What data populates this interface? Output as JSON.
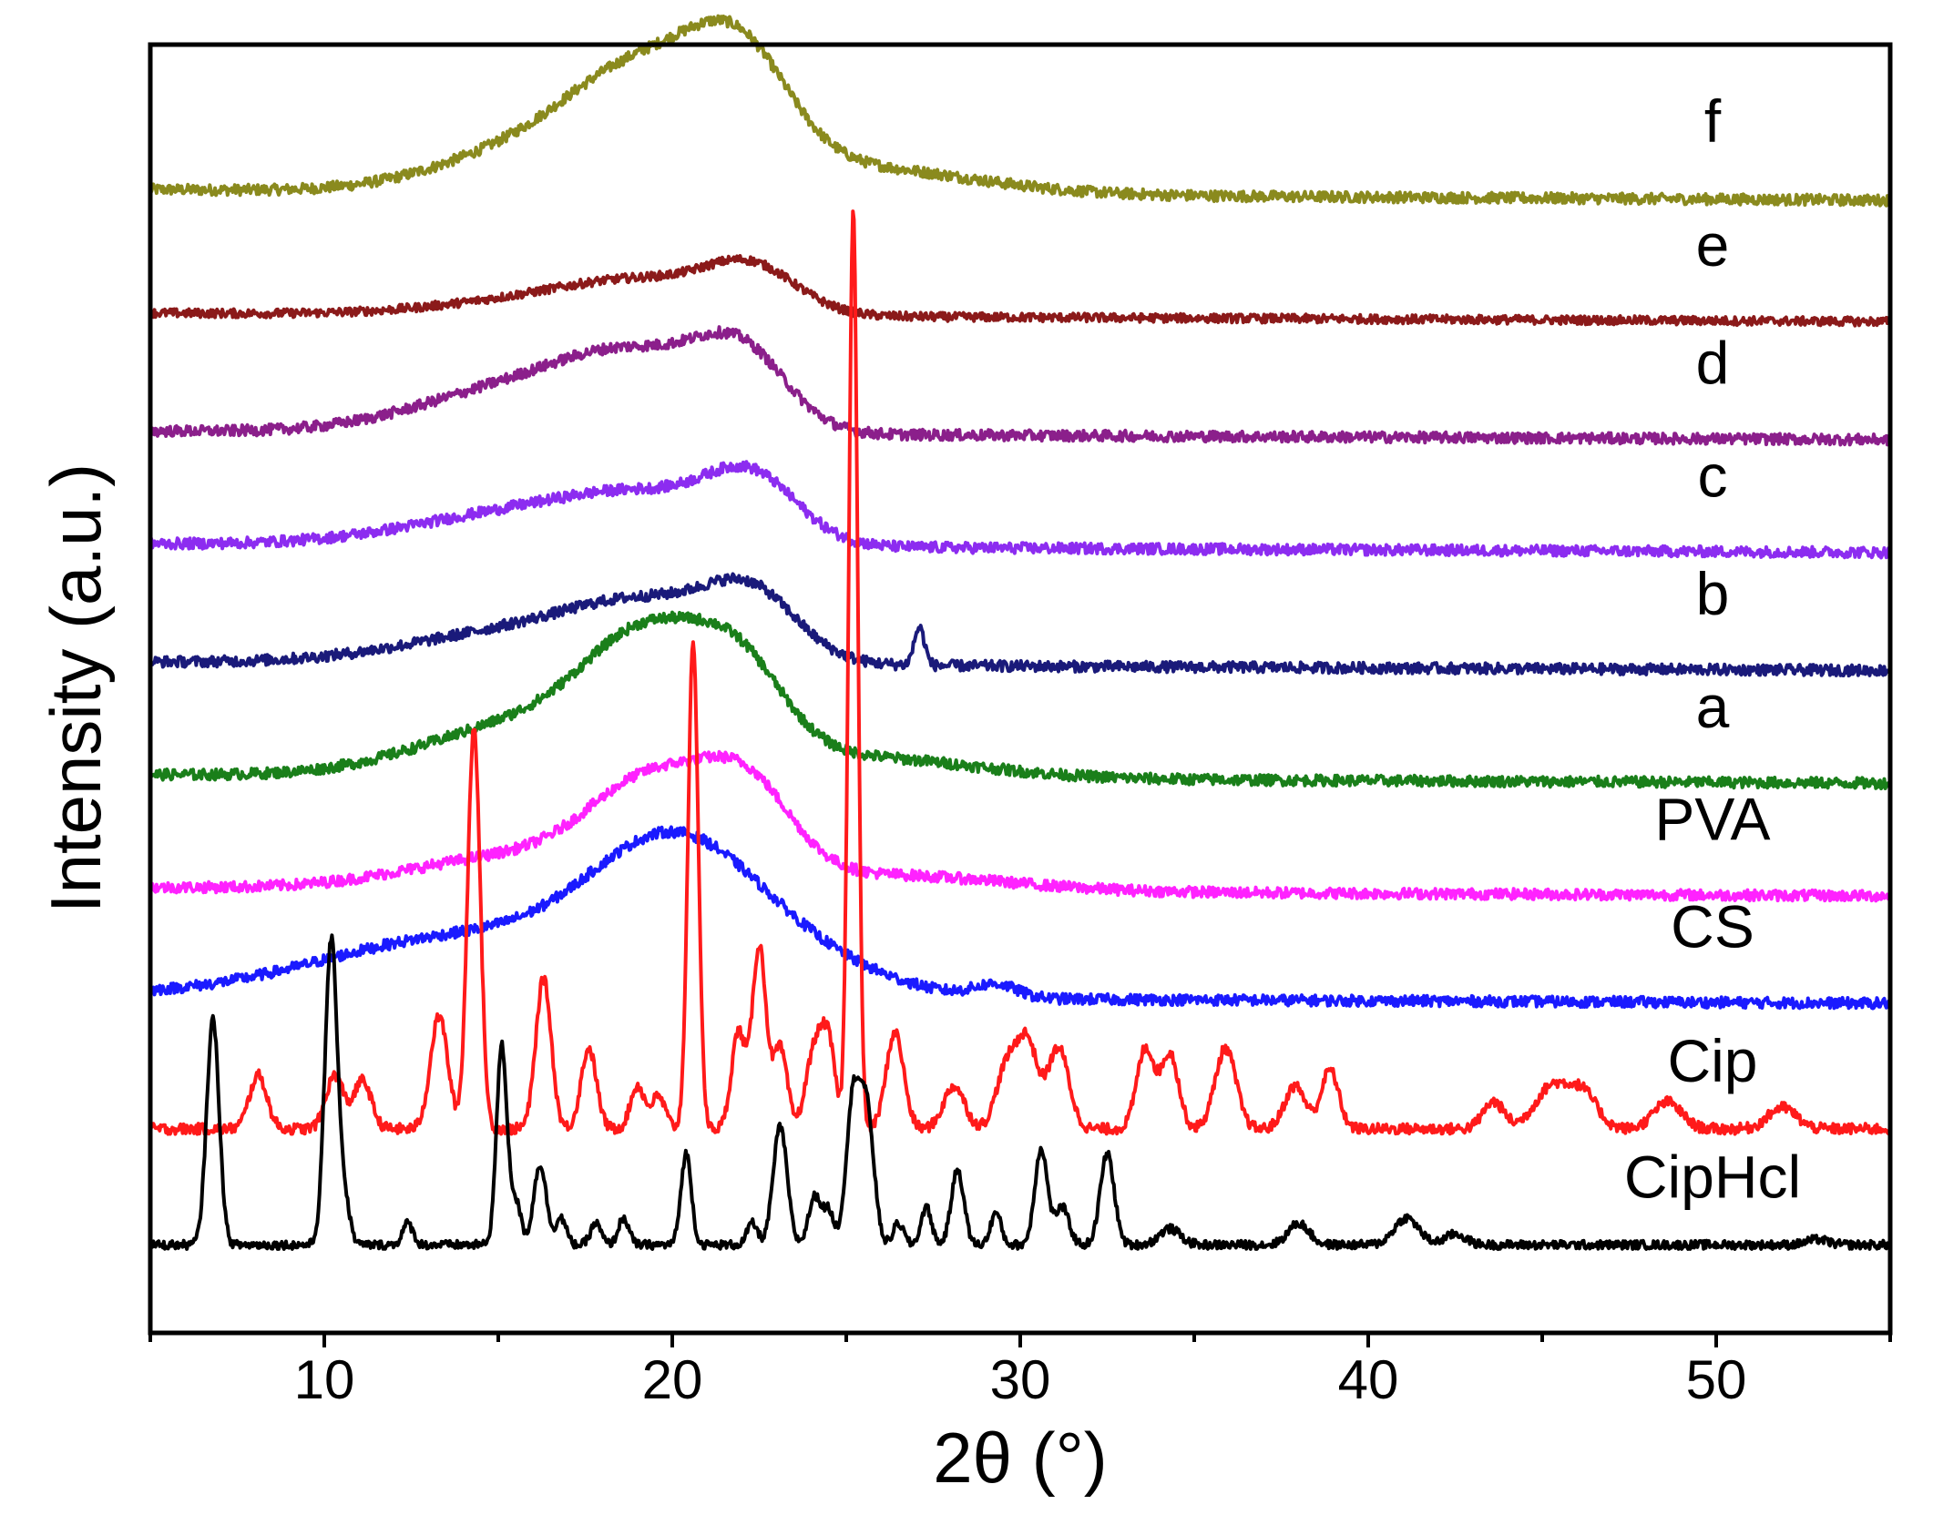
{
  "chart_data": {
    "type": "line",
    "title": "",
    "xlabel": "2θ (°)",
    "ylabel": "Intensity (a.u.)",
    "xlim": [
      5,
      55
    ],
    "ylim": [
      0,
      12
    ],
    "xticks": [
      10,
      20,
      30,
      40,
      50
    ],
    "xtick_labels": [
      "10",
      "20",
      "30",
      "40",
      "50"
    ],
    "yticks_shown": false,
    "legend": "inline labels at right end of each trace",
    "series": [
      {
        "name": "f",
        "label": "f",
        "color": "#8a8a1e",
        "offset": 10.65,
        "peaks": [
          [
            15.5,
            0.32,
            2.5
          ],
          [
            19.3,
            1.05,
            2.2
          ],
          [
            22.0,
            0.85,
            1.4
          ],
          [
            25.0,
            0.25,
            3.5
          ]
        ],
        "baseline_tilt": -0.1,
        "noise": 0.05,
        "points": [
          [
            5,
            10.65
          ],
          [
            12,
            10.72
          ],
          [
            16,
            11.0
          ],
          [
            19.3,
            11.72
          ],
          [
            22,
            11.55
          ],
          [
            25,
            11.05
          ],
          [
            30,
            10.8
          ],
          [
            40,
            10.66
          ],
          [
            55,
            10.55
          ]
        ]
      },
      {
        "name": "e",
        "label": "e",
        "color": "#8b1a1a",
        "offset": 9.5,
        "peaks": [
          [
            17.0,
            0.18,
            3.0
          ],
          [
            19.5,
            0.2,
            2.0
          ],
          [
            22.3,
            0.4,
            1.3
          ]
        ],
        "baseline_tilt": -0.08,
        "noise": 0.04,
        "points": [
          [
            5,
            9.5
          ],
          [
            15,
            9.6
          ],
          [
            19.5,
            9.78
          ],
          [
            22.3,
            9.95
          ],
          [
            25,
            9.6
          ],
          [
            35,
            9.48
          ],
          [
            55,
            9.42
          ]
        ]
      },
      {
        "name": "d",
        "label": "d",
        "color": "#8b1f8b",
        "offset": 8.4,
        "peaks": [
          [
            16.0,
            0.45,
            3.0
          ],
          [
            19.2,
            0.5,
            2.0
          ],
          [
            22.0,
            0.65,
            1.3
          ]
        ],
        "baseline_tilt": -0.08,
        "noise": 0.05,
        "points": [
          [
            5,
            8.4
          ],
          [
            12,
            8.55
          ],
          [
            16,
            8.95
          ],
          [
            19.2,
            9.05
          ],
          [
            22,
            9.25
          ],
          [
            25,
            8.62
          ],
          [
            35,
            8.42
          ],
          [
            55,
            8.32
          ]
        ]
      },
      {
        "name": "c",
        "label": "c",
        "color": "#8c2cf0",
        "offset": 7.35,
        "peaks": [
          [
            16.5,
            0.35,
            3.5
          ],
          [
            19.5,
            0.25,
            2.0
          ],
          [
            22.3,
            0.55,
            1.3
          ]
        ],
        "baseline_tilt": -0.08,
        "noise": 0.05,
        "points": [
          [
            5,
            7.35
          ],
          [
            13,
            7.5
          ],
          [
            17,
            7.72
          ],
          [
            19.5,
            7.82
          ],
          [
            22.3,
            8.1
          ],
          [
            25,
            7.5
          ],
          [
            35,
            7.35
          ],
          [
            55,
            7.27
          ]
        ]
      },
      {
        "name": "b",
        "label": "b",
        "color": "#1a1a7a",
        "offset": 6.25,
        "peaks": [
          [
            16.5,
            0.35,
            3.5
          ],
          [
            19.5,
            0.35,
            2.0
          ],
          [
            22.3,
            0.55,
            1.3
          ],
          [
            27.1,
            0.35,
            0.15
          ]
        ],
        "baseline_tilt": -0.08,
        "noise": 0.05,
        "points": [
          [
            5,
            6.25
          ],
          [
            14,
            6.45
          ],
          [
            19.3,
            6.72
          ],
          [
            22.3,
            6.95
          ],
          [
            25,
            6.42
          ],
          [
            27.1,
            6.62
          ],
          [
            35,
            6.22
          ],
          [
            55,
            6.12
          ]
        ]
      },
      {
        "name": "a",
        "label": "a",
        "color": "#1a7f1a",
        "offset": 5.2,
        "peaks": [
          [
            16.0,
            0.5,
            3.0
          ],
          [
            19.4,
            1.05,
            1.8
          ],
          [
            22.0,
            0.7,
            1.3
          ],
          [
            25.0,
            0.2,
            3.5
          ]
        ],
        "baseline_tilt": -0.08,
        "noise": 0.05,
        "points": [
          [
            5,
            5.2
          ],
          [
            13,
            5.45
          ],
          [
            16,
            5.75
          ],
          [
            19.4,
            6.3
          ],
          [
            22,
            6.05
          ],
          [
            25,
            5.5
          ],
          [
            35,
            5.25
          ],
          [
            55,
            5.1
          ]
        ]
      },
      {
        "name": "PVA",
        "label": "PVA",
        "color": "#ff22ff",
        "offset": 4.15,
        "peaks": [
          [
            15.5,
            0.3,
            3.0
          ],
          [
            19.5,
            0.9,
            1.8
          ],
          [
            22.2,
            0.75,
            1.3
          ],
          [
            26.0,
            0.15,
            3.5
          ]
        ],
        "baseline_tilt": -0.08,
        "noise": 0.05,
        "points": [
          [
            5,
            4.15
          ],
          [
            14,
            4.4
          ],
          [
            19.5,
            5.1
          ],
          [
            22.2,
            4.95
          ],
          [
            25,
            4.45
          ],
          [
            35,
            4.2
          ],
          [
            55,
            4.08
          ]
        ]
      },
      {
        "name": "CS",
        "label": "CS",
        "color": "#1a1aff",
        "offset": 3.15,
        "peaks": [
          [
            14.0,
            0.55,
            4.0
          ],
          [
            20.0,
            1.25,
            2.4
          ],
          [
            23.5,
            0.3,
            2.5
          ],
          [
            29.3,
            0.12,
            0.6
          ]
        ],
        "baseline_tilt": -0.08,
        "noise": 0.05,
        "points": [
          [
            5,
            3.15
          ],
          [
            10,
            3.55
          ],
          [
            15,
            3.85
          ],
          [
            20,
            4.45
          ],
          [
            24,
            3.95
          ],
          [
            30,
            3.4
          ],
          [
            40,
            3.25
          ],
          [
            55,
            3.05
          ]
        ]
      },
      {
        "name": "Cip",
        "label": "Cip",
        "color": "#ff1a1a",
        "offset": 1.9,
        "peaks": [
          [
            8.1,
            0.5,
            0.25
          ],
          [
            10.3,
            0.5,
            0.25
          ],
          [
            11.1,
            0.45,
            0.25
          ],
          [
            13.3,
            1.05,
            0.25
          ],
          [
            14.3,
            3.75,
            0.18
          ],
          [
            16.3,
            1.4,
            0.22
          ],
          [
            17.6,
            0.75,
            0.22
          ],
          [
            19.0,
            0.4,
            0.2
          ],
          [
            19.6,
            0.3,
            0.2
          ],
          [
            20.6,
            4.5,
            0.15
          ],
          [
            21.9,
            0.9,
            0.2
          ],
          [
            22.5,
            1.7,
            0.2
          ],
          [
            23.1,
            0.75,
            0.2
          ],
          [
            24.1,
            0.75,
            0.25
          ],
          [
            24.5,
            0.7,
            0.2
          ],
          [
            25.2,
            8.55,
            0.13
          ],
          [
            26.4,
            0.9,
            0.25
          ],
          [
            28.1,
            0.4,
            0.3
          ],
          [
            29.6,
            0.55,
            0.3
          ],
          [
            30.2,
            0.8,
            0.3
          ],
          [
            31.1,
            0.75,
            0.3
          ],
          [
            33.6,
            0.75,
            0.25
          ],
          [
            34.3,
            0.7,
            0.25
          ],
          [
            35.9,
            0.75,
            0.3
          ],
          [
            37.9,
            0.4,
            0.3
          ],
          [
            38.9,
            0.55,
            0.25
          ],
          [
            43.6,
            0.25,
            0.3
          ],
          [
            45.3,
            0.4,
            0.5
          ],
          [
            46.2,
            0.3,
            0.4
          ],
          [
            48.6,
            0.25,
            0.4
          ],
          [
            51.9,
            0.2,
            0.4
          ]
        ],
        "baseline_tilt": 0.0,
        "noise": 0.05,
        "points": [
          [
            5,
            1.9
          ],
          [
            14.3,
            5.65
          ],
          [
            20.6,
            6.4
          ],
          [
            25.2,
            10.45
          ],
          [
            30,
            2.65
          ],
          [
            40,
            2.05
          ],
          [
            55,
            1.9
          ]
        ]
      },
      {
        "name": "CipHcl",
        "label": "CipHcl",
        "color": "#000000",
        "offset": 0.82,
        "peaks": [
          [
            6.8,
            2.1,
            0.18
          ],
          [
            10.2,
            2.85,
            0.18
          ],
          [
            10.6,
            0.35,
            0.15
          ],
          [
            12.4,
            0.2,
            0.15
          ],
          [
            15.1,
            1.85,
            0.15
          ],
          [
            15.5,
            0.4,
            0.15
          ],
          [
            16.2,
            0.75,
            0.18
          ],
          [
            16.8,
            0.25,
            0.15
          ],
          [
            17.8,
            0.2,
            0.15
          ],
          [
            18.6,
            0.25,
            0.15
          ],
          [
            20.4,
            0.85,
            0.15
          ],
          [
            22.3,
            0.2,
            0.15
          ],
          [
            23.1,
            1.1,
            0.2
          ],
          [
            24.1,
            0.45,
            0.18
          ],
          [
            24.5,
            0.3,
            0.15
          ],
          [
            25.2,
            1.35,
            0.2
          ],
          [
            25.6,
            1.2,
            0.2
          ],
          [
            26.5,
            0.2,
            0.15
          ],
          [
            27.3,
            0.35,
            0.15
          ],
          [
            28.2,
            0.7,
            0.18
          ],
          [
            29.3,
            0.3,
            0.15
          ],
          [
            30.6,
            0.9,
            0.18
          ],
          [
            31.2,
            0.35,
            0.2
          ],
          [
            32.5,
            0.85,
            0.2
          ],
          [
            34.3,
            0.15,
            0.3
          ],
          [
            38.0,
            0.2,
            0.3
          ],
          [
            41.1,
            0.25,
            0.35
          ],
          [
            42.5,
            0.1,
            0.3
          ],
          [
            52.9,
            0.05,
            0.3
          ]
        ],
        "baseline_tilt": 0.0,
        "noise": 0.04,
        "points": [
          [
            5,
            0.82
          ],
          [
            6.8,
            2.92
          ],
          [
            10.2,
            3.67
          ],
          [
            15.1,
            2.67
          ],
          [
            23.1,
            1.92
          ],
          [
            25.2,
            2.17
          ],
          [
            40,
            0.85
          ],
          [
            55,
            0.82
          ]
        ]
      }
    ]
  }
}
